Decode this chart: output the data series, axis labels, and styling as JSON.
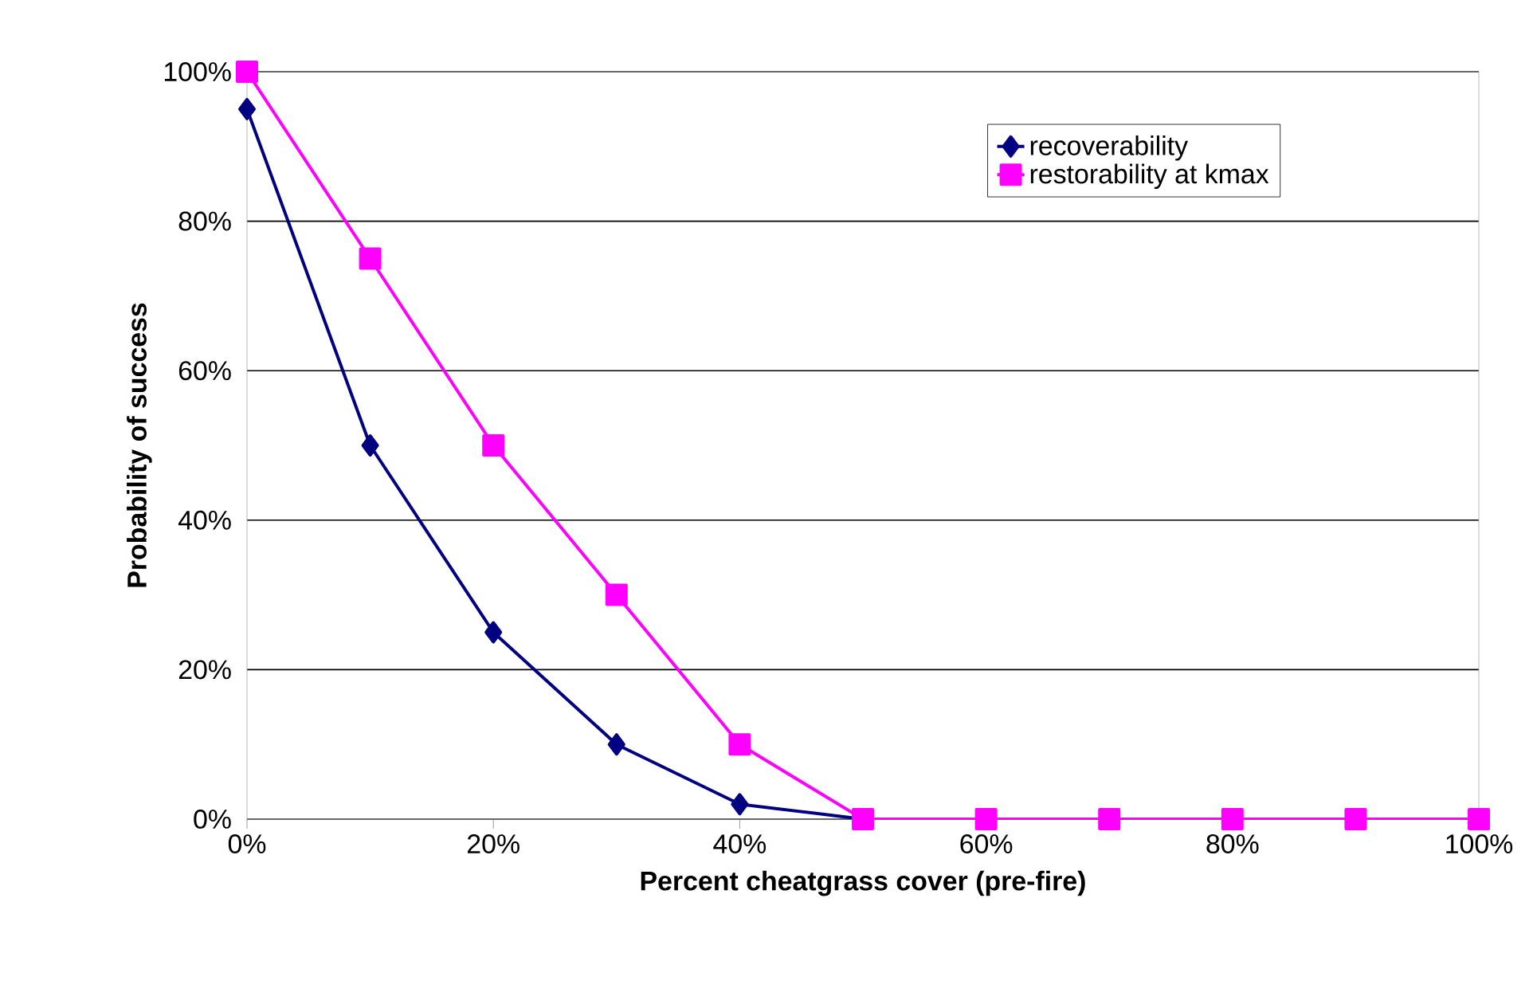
{
  "chart_data": {
    "type": "line",
    "xlabel": "Percent cheatgrass cover (pre-fire)",
    "ylabel": "Probability of success",
    "x": [
      0,
      10,
      20,
      30,
      40,
      50,
      60,
      70,
      80,
      90,
      100
    ],
    "series": [
      {
        "name": "recoverability",
        "color": "#000080",
        "marker": "diamond",
        "values": [
          95,
          50,
          25,
          10,
          2,
          0,
          null,
          null,
          null,
          null,
          null
        ]
      },
      {
        "name": "restorability at kmax",
        "color": "#ff00ff",
        "marker": "square",
        "values": [
          100,
          75,
          50,
          30,
          10,
          0,
          0,
          0,
          0,
          0,
          0
        ]
      }
    ],
    "xlim": [
      0,
      100
    ],
    "xticks": [
      {
        "value": 0,
        "label": "0%"
      },
      {
        "value": 20,
        "label": "20%"
      },
      {
        "value": 40,
        "label": "40%"
      },
      {
        "value": 60,
        "label": "60%"
      },
      {
        "value": 80,
        "label": "80%"
      },
      {
        "value": 100,
        "label": "100%"
      }
    ],
    "ylim": [
      0,
      100
    ],
    "yticks": [
      {
        "value": 0,
        "label": "0%"
      },
      {
        "value": 20,
        "label": "20%"
      },
      {
        "value": 40,
        "label": "40%"
      },
      {
        "value": 60,
        "label": "60%"
      },
      {
        "value": 80,
        "label": "80%"
      },
      {
        "value": 100,
        "label": "100%"
      }
    ],
    "grid": "y",
    "legend": "top right",
    "line_style": "solid"
  }
}
